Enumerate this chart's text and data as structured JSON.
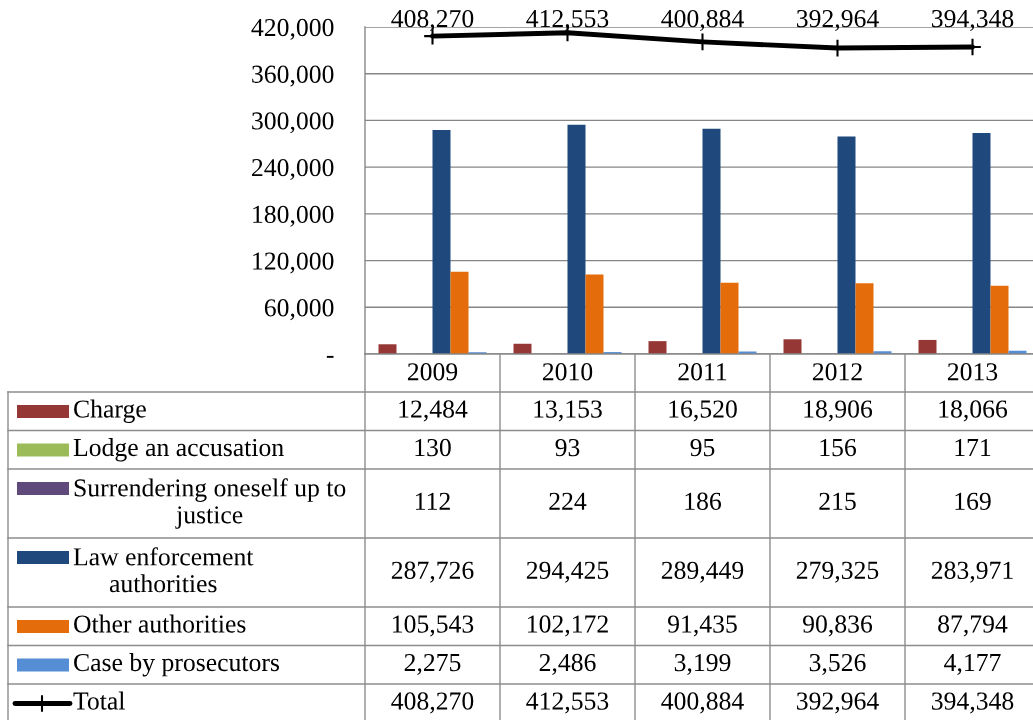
{
  "chart_data": {
    "type": "bar",
    "categories": [
      "2009",
      "2010",
      "2011",
      "2012",
      "2013"
    ],
    "ylim": [
      0,
      420000
    ],
    "yticks": [
      {
        "value": 0,
        "label": "-"
      },
      {
        "value": 60000,
        "label": "60,000"
      },
      {
        "value": 120000,
        "label": "120,000"
      },
      {
        "value": 180000,
        "label": "180,000"
      },
      {
        "value": 240000,
        "label": "240,000"
      },
      {
        "value": 300000,
        "label": "300,000"
      },
      {
        "value": 360000,
        "label": "360,000"
      },
      {
        "value": 420000,
        "label": "420,000"
      }
    ],
    "grid": "y",
    "legend": "bottom",
    "series": [
      {
        "name": "Charge",
        "color": "#953735",
        "values": [
          12484,
          13153,
          16520,
          18906,
          18066
        ],
        "value_labels": [
          "12,484",
          "13,153",
          "16,520",
          "18,906",
          "18,066"
        ]
      },
      {
        "name": "Lodge an accusation",
        "color": "#9bbb59",
        "values": [
          130,
          93,
          95,
          156,
          171
        ],
        "value_labels": [
          "130",
          "93",
          "95",
          "156",
          "171"
        ]
      },
      {
        "name": "Surrendering oneself up to justice",
        "color": "#604a7b",
        "values": [
          112,
          224,
          186,
          215,
          169
        ],
        "value_labels": [
          "112",
          "224",
          "186",
          "215",
          "169"
        ]
      },
      {
        "name": "Law enforcement authorities",
        "color": "#1f497d",
        "values": [
          287726,
          294425,
          289449,
          279325,
          283971
        ],
        "value_labels": [
          "287,726",
          "294,425",
          "289,449",
          "279,325",
          "283,971"
        ]
      },
      {
        "name": "Other authorities",
        "color": "#e46c0a",
        "values": [
          105543,
          102172,
          91435,
          90836,
          87794
        ],
        "value_labels": [
          "105,543",
          "102,172",
          "91,435",
          "90,836",
          "87,794"
        ]
      },
      {
        "name": "Case by prosecutors",
        "color": "#558ed5",
        "values": [
          2275,
          2486,
          3199,
          3526,
          4177
        ],
        "value_labels": [
          "2,275",
          "2,486",
          "3,199",
          "3,526",
          "4,177"
        ]
      },
      {
        "name": "Total",
        "color": "#000000",
        "type": "line",
        "marker": "cross",
        "values": [
          408270,
          412553,
          400884,
          392964,
          394348
        ],
        "value_labels": [
          "408,270",
          "412,553",
          "400,884",
          "392,964",
          "394,348"
        ]
      }
    ]
  }
}
